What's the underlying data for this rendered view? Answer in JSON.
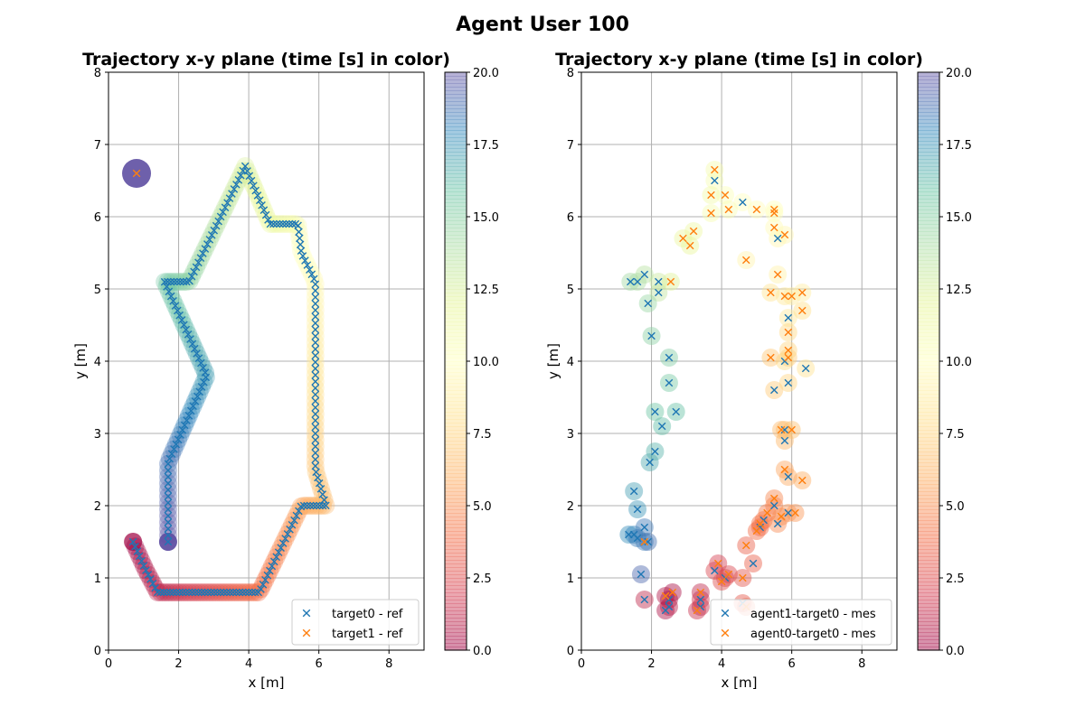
{
  "figure": {
    "title": "Agent User 100"
  },
  "colors": {
    "series_ref_0": "#1f77b4",
    "series_ref_1": "#ff7f0e",
    "cmap": "Spectral",
    "grid": "#b0b0b0"
  },
  "colorbar": {
    "ticks": [
      "0.0",
      "2.5",
      "5.0",
      "7.5",
      "10.0",
      "12.5",
      "15.0",
      "17.5",
      "20.0"
    ],
    "min": 0,
    "max": 20
  },
  "chart_data": [
    {
      "type": "scatter",
      "title": "Trajectory x-y plane  (time [s] in color)",
      "xlabel": "x [m]",
      "ylabel": "y [m]",
      "xlim": [
        0,
        9
      ],
      "ylim": [
        0,
        8
      ],
      "xticks": [
        "0",
        "2",
        "4",
        "6",
        "8"
      ],
      "yticks": [
        "0",
        "1",
        "2",
        "3",
        "4",
        "5",
        "6",
        "7",
        "8"
      ],
      "grid": true,
      "legend_position": "lower-right",
      "color_scale": "time [s], 0 to 20",
      "legend": [
        "target0 - ref",
        "target1 - ref"
      ],
      "series": [
        {
          "name": "target0 - ref",
          "marker": "x",
          "waypoints": [
            [
              0.7,
              1.5
            ],
            [
              1.05,
              1.12
            ],
            [
              1.4,
              0.8
            ],
            [
              4.3,
              0.8
            ],
            [
              5.5,
              2.0
            ],
            [
              6.2,
              2.0
            ],
            [
              5.9,
              2.5
            ],
            [
              5.9,
              5.1
            ],
            [
              5.5,
              5.5
            ],
            [
              5.4,
              5.9
            ],
            [
              4.6,
              5.9
            ],
            [
              3.9,
              6.7
            ],
            [
              2.3,
              5.1
            ],
            [
              1.6,
              5.1
            ],
            [
              2.8,
              3.8
            ],
            [
              1.7,
              2.6
            ],
            [
              1.7,
              1.5
            ]
          ],
          "t_range": [
            0,
            20
          ]
        },
        {
          "name": "target1 - ref",
          "marker": "x",
          "points": [
            [
              0.8,
              6.6
            ]
          ],
          "t": [
            20
          ]
        }
      ]
    },
    {
      "type": "scatter",
      "title": "Trajectory x-y plane  (time [s] in color)",
      "xlabel": "x [m]",
      "ylabel": "y [m]",
      "xlim": [
        0,
        9
      ],
      "ylim": [
        0,
        8
      ],
      "xticks": [
        "0",
        "2",
        "4",
        "6",
        "8"
      ],
      "yticks": [
        "0",
        "1",
        "2",
        "3",
        "4",
        "5",
        "6",
        "7",
        "8"
      ],
      "grid": true,
      "legend_position": "lower-right",
      "color_scale": "time [s], 0 to 20",
      "legend": [
        "agent1-target0 - mes",
        "agent0-target0 - mes"
      ],
      "series": [
        {
          "name": "agent1-target0 - mes",
          "marker": "x",
          "points": [
            {
              "x": 2.4,
              "y": 0.55,
              "t": 0.5
            },
            {
              "x": 2.5,
              "y": 0.7,
              "t": 0.8
            },
            {
              "x": 2.5,
              "y": 0.6,
              "t": 1.0
            },
            {
              "x": 1.8,
              "y": 0.7,
              "t": 1.2
            },
            {
              "x": 3.4,
              "y": 0.6,
              "t": 1.5
            },
            {
              "x": 3.4,
              "y": 0.7,
              "t": 1.8
            },
            {
              "x": 3.8,
              "y": 1.1,
              "t": 2.3
            },
            {
              "x": 4.1,
              "y": 1.0,
              "t": 2.6
            },
            {
              "x": 4.6,
              "y": 0.65,
              "t": 3.0
            },
            {
              "x": 4.9,
              "y": 1.2,
              "t": 3.3
            },
            {
              "x": 5.1,
              "y": 1.7,
              "t": 3.8
            },
            {
              "x": 5.2,
              "y": 1.8,
              "t": 4.2
            },
            {
              "x": 5.5,
              "y": 2.0,
              "t": 4.6
            },
            {
              "x": 5.6,
              "y": 1.75,
              "t": 4.9
            },
            {
              "x": 5.9,
              "y": 1.9,
              "t": 5.3
            },
            {
              "x": 5.9,
              "y": 2.4,
              "t": 5.8
            },
            {
              "x": 5.8,
              "y": 2.9,
              "t": 6.3
            },
            {
              "x": 5.8,
              "y": 3.05,
              "t": 6.7
            },
            {
              "x": 5.5,
              "y": 3.6,
              "t": 7.1
            },
            {
              "x": 5.9,
              "y": 3.7,
              "t": 7.5
            },
            {
              "x": 5.8,
              "y": 4.0,
              "t": 7.9
            },
            {
              "x": 6.4,
              "y": 3.9,
              "t": 8.2
            },
            {
              "x": 5.9,
              "y": 4.6,
              "t": 8.6
            },
            {
              "x": 5.6,
              "y": 5.7,
              "t": 9.4
            },
            {
              "x": 4.6,
              "y": 6.2,
              "t": 10.0
            },
            {
              "x": 3.8,
              "y": 6.5,
              "t": 10.6
            },
            {
              "x": 2.2,
              "y": 5.1,
              "t": 13.0
            },
            {
              "x": 2.2,
              "y": 4.95,
              "t": 13.3
            },
            {
              "x": 1.8,
              "y": 5.2,
              "t": 13.6
            },
            {
              "x": 1.6,
              "y": 5.1,
              "t": 13.9
            },
            {
              "x": 1.4,
              "y": 5.1,
              "t": 14.2
            },
            {
              "x": 1.9,
              "y": 4.8,
              "t": 14.5
            },
            {
              "x": 2.0,
              "y": 4.35,
              "t": 14.9
            },
            {
              "x": 2.5,
              "y": 4.05,
              "t": 15.2
            },
            {
              "x": 2.5,
              "y": 3.7,
              "t": 15.5
            },
            {
              "x": 2.1,
              "y": 3.3,
              "t": 15.8
            },
            {
              "x": 2.7,
              "y": 3.3,
              "t": 16.0
            },
            {
              "x": 2.3,
              "y": 3.1,
              "t": 16.2
            },
            {
              "x": 2.1,
              "y": 2.75,
              "t": 16.5
            },
            {
              "x": 1.95,
              "y": 2.6,
              "t": 16.8
            },
            {
              "x": 1.5,
              "y": 2.2,
              "t": 17.2
            },
            {
              "x": 1.6,
              "y": 1.95,
              "t": 17.5
            },
            {
              "x": 1.35,
              "y": 1.6,
              "t": 17.8
            },
            {
              "x": 1.5,
              "y": 1.6,
              "t": 18.1
            },
            {
              "x": 1.6,
              "y": 1.55,
              "t": 18.4
            },
            {
              "x": 1.8,
              "y": 1.7,
              "t": 18.6
            },
            {
              "x": 1.9,
              "y": 1.5,
              "t": 18.8
            },
            {
              "x": 1.7,
              "y": 1.05,
              "t": 19.2
            }
          ]
        },
        {
          "name": "agent0-target0 - mes",
          "marker": "x",
          "points": [
            {
              "x": 2.6,
              "y": 0.8,
              "t": 0.4
            },
            {
              "x": 2.4,
              "y": 0.75,
              "t": 0.7
            },
            {
              "x": 3.4,
              "y": 0.8,
              "t": 1.2
            },
            {
              "x": 3.3,
              "y": 0.55,
              "t": 1.5
            },
            {
              "x": 3.9,
              "y": 1.2,
              "t": 2.0
            },
            {
              "x": 4.2,
              "y": 1.05,
              "t": 2.3
            },
            {
              "x": 4.0,
              "y": 0.95,
              "t": 2.6
            },
            {
              "x": 4.6,
              "y": 1.0,
              "t": 2.9
            },
            {
              "x": 4.7,
              "y": 1.45,
              "t": 3.3
            },
            {
              "x": 4.7,
              "y": 0.6,
              "t": 3.6
            },
            {
              "x": 5.0,
              "y": 1.65,
              "t": 3.9
            },
            {
              "x": 5.1,
              "y": 1.75,
              "t": 4.1
            },
            {
              "x": 5.3,
              "y": 1.9,
              "t": 4.4
            },
            {
              "x": 5.5,
              "y": 2.1,
              "t": 4.7
            },
            {
              "x": 5.7,
              "y": 1.85,
              "t": 5.0
            },
            {
              "x": 6.1,
              "y": 1.9,
              "t": 5.3
            },
            {
              "x": 5.8,
              "y": 2.5,
              "t": 5.7
            },
            {
              "x": 6.3,
              "y": 2.35,
              "t": 6.0
            },
            {
              "x": 5.7,
              "y": 3.05,
              "t": 6.5
            },
            {
              "x": 6.0,
              "y": 3.05,
              "t": 6.7
            },
            {
              "x": 5.4,
              "y": 4.05,
              "t": 7.0
            },
            {
              "x": 5.9,
              "y": 4.05,
              "t": 7.3
            },
            {
              "x": 5.9,
              "y": 4.15,
              "t": 7.5
            },
            {
              "x": 5.9,
              "y": 4.4,
              "t": 7.7
            },
            {
              "x": 6.3,
              "y": 4.7,
              "t": 8.0
            },
            {
              "x": 5.4,
              "y": 4.95,
              "t": 8.3
            },
            {
              "x": 5.8,
              "y": 4.9,
              "t": 8.5
            },
            {
              "x": 6.0,
              "y": 4.9,
              "t": 8.7
            },
            {
              "x": 6.3,
              "y": 4.95,
              "t": 8.9
            },
            {
              "x": 5.6,
              "y": 5.2,
              "t": 9.1
            },
            {
              "x": 4.7,
              "y": 5.4,
              "t": 9.3
            },
            {
              "x": 5.8,
              "y": 5.75,
              "t": 9.5
            },
            {
              "x": 5.5,
              "y": 5.85,
              "t": 9.7
            },
            {
              "x": 5.0,
              "y": 6.1,
              "t": 9.9
            },
            {
              "x": 5.5,
              "y": 6.05,
              "t": 10.0
            },
            {
              "x": 5.5,
              "y": 6.1,
              "t": 10.1
            },
            {
              "x": 4.1,
              "y": 6.3,
              "t": 10.3
            },
            {
              "x": 4.2,
              "y": 6.1,
              "t": 10.5
            },
            {
              "x": 3.7,
              "y": 6.05,
              "t": 10.7
            },
            {
              "x": 3.8,
              "y": 6.65,
              "t": 10.9
            },
            {
              "x": 3.7,
              "y": 6.3,
              "t": 11.1
            },
            {
              "x": 3.2,
              "y": 5.8,
              "t": 11.4
            },
            {
              "x": 2.9,
              "y": 5.7,
              "t": 11.6
            },
            {
              "x": 3.1,
              "y": 5.6,
              "t": 11.8
            },
            {
              "x": 2.55,
              "y": 5.1,
              "t": 12.3
            },
            {
              "x": 1.8,
              "y": 1.5,
              "t": 18.5
            }
          ]
        }
      ]
    }
  ]
}
